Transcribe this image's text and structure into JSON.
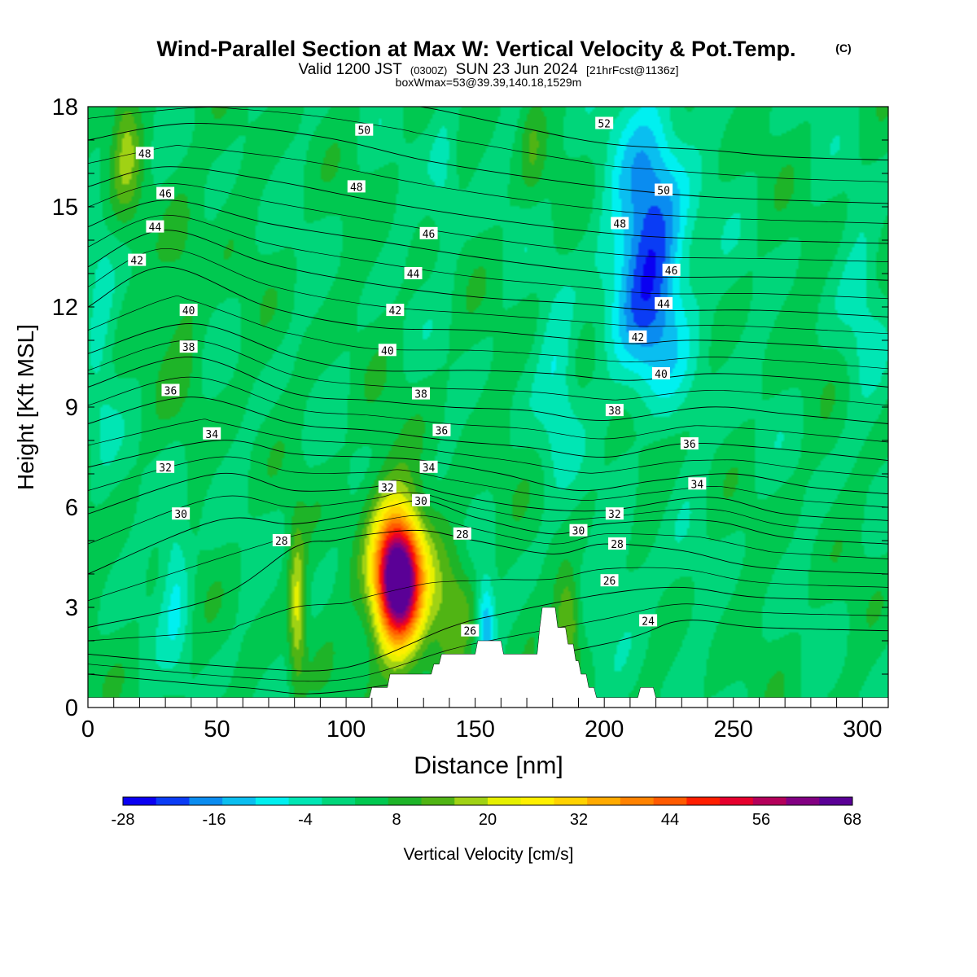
{
  "chart_data": {
    "type": "heatmap",
    "title": "Wind-Parallel Section at Max W: Vertical Velocity & Pot.Temp.",
    "title_mark": "(C)",
    "subtitle_main": "Valid 1200 JST",
    "subtitle_utc": "(0300Z)",
    "subtitle_date": "SUN 23 Jun 2024",
    "subtitle_fcst": "[21hrFcst@1136z]",
    "subtitle2": "boxWmax=53@39.39,140.18,1529m",
    "xlabel": "Distance [nm]",
    "ylabel": "Height [Kft MSL]",
    "xlim": [
      0,
      310
    ],
    "ylim": [
      0,
      18
    ],
    "xticks": [
      "0",
      "50",
      "100",
      "150",
      "200",
      "250",
      "300"
    ],
    "yticks": [
      "0",
      "3",
      "6",
      "9",
      "12",
      "15",
      "18"
    ],
    "colorbar": {
      "label": "Vertical Velocity [cm/s]",
      "ticks": [
        "-28",
        "-16",
        "-4",
        "8",
        "20",
        "32",
        "44",
        "56",
        "68"
      ],
      "colors": [
        "#0a00f2",
        "#0a3cf5",
        "#0a8cf0",
        "#0abef0",
        "#00f0f0",
        "#00e6b4",
        "#00d67a",
        "#00c850",
        "#1eb428",
        "#50b414",
        "#a0d214",
        "#e6f000",
        "#fff000",
        "#ffd200",
        "#ffaa00",
        "#ff8200",
        "#ff5a00",
        "#ff1e00",
        "#e6002d",
        "#b4005a",
        "#820082",
        "#5a0096"
      ]
    },
    "wfield": {
      "background": 3,
      "blobs": [
        {
          "x": 120,
          "y": 3.8,
          "sx": 6,
          "sy": 1.3,
          "a": 64
        },
        {
          "x": 120,
          "y": 4.0,
          "sx": 11,
          "sy": 2.2,
          "a": 14
        },
        {
          "x": 81,
          "y": 3.0,
          "sx": 2.2,
          "sy": 1.6,
          "a": 18
        },
        {
          "x": 186,
          "y": 2.6,
          "sx": 3.5,
          "sy": 1.0,
          "a": 16
        },
        {
          "x": 142,
          "y": 3.0,
          "sx": 6,
          "sy": 1.5,
          "a": 10
        },
        {
          "x": 15,
          "y": 17,
          "sx": 4,
          "sy": 1.5,
          "a": 12
        },
        {
          "x": 37,
          "y": 12.5,
          "sx": 6,
          "sy": 2.5,
          "a": 6
        },
        {
          "x": 218,
          "y": 7.5,
          "sx": 8,
          "sy": 2.0,
          "a": 10
        },
        {
          "x": 172,
          "y": 17,
          "sx": 3,
          "sy": 1.2,
          "a": 6
        },
        {
          "x": 154,
          "y": 2.5,
          "sx": 2.5,
          "sy": 1.0,
          "a": -18
        },
        {
          "x": 34,
          "y": 4.0,
          "sx": 4,
          "sy": 1.8,
          "a": -10
        },
        {
          "x": 218,
          "y": 14,
          "sx": 9,
          "sy": 3.0,
          "a": -20
        },
        {
          "x": 218,
          "y": 11,
          "sx": 15,
          "sy": 4.0,
          "a": -8
        },
        {
          "x": 182,
          "y": 10,
          "sx": 5,
          "sy": 2.0,
          "a": -8
        },
        {
          "x": 138,
          "y": 16,
          "sx": 4,
          "sy": 2.0,
          "a": -6
        },
        {
          "x": 5,
          "y": 11,
          "sx": 4,
          "sy": 3.0,
          "a": -5
        },
        {
          "x": 210,
          "y": 4,
          "sx": 8,
          "sy": 1.5,
          "a": -5
        },
        {
          "x": 300,
          "y": 12,
          "sx": 6,
          "sy": 2.5,
          "a": -5
        }
      ]
    },
    "terrain": [
      [
        0,
        0.3
      ],
      [
        109,
        0.3
      ],
      [
        110,
        0.6
      ],
      [
        116,
        0.6
      ],
      [
        117,
        1.0
      ],
      [
        133,
        1.0
      ],
      [
        134,
        1.3
      ],
      [
        136,
        1.3
      ],
      [
        137,
        1.6
      ],
      [
        150,
        1.6
      ],
      [
        151,
        2.0
      ],
      [
        160,
        2.0
      ],
      [
        161,
        1.6
      ],
      [
        174,
        1.6
      ],
      [
        175,
        2.4
      ],
      [
        176,
        3.0
      ],
      [
        181,
        3.0
      ],
      [
        182,
        2.4
      ],
      [
        185,
        2.4
      ],
      [
        186,
        1.9
      ],
      [
        188,
        1.9
      ],
      [
        189,
        1.4
      ],
      [
        190,
        1.4
      ],
      [
        191,
        1.0
      ],
      [
        193,
        1.0
      ],
      [
        194,
        0.6
      ],
      [
        196,
        0.6
      ],
      [
        197,
        0.3
      ],
      [
        213,
        0.3
      ],
      [
        214,
        0.6
      ],
      [
        219,
        0.6
      ],
      [
        220,
        0.3
      ],
      [
        310,
        0.3
      ]
    ],
    "isentropes": [
      {
        "t": 24,
        "pts": [
          [
            0,
            1.0
          ],
          [
            60,
            0.6
          ],
          [
            100,
            0.5
          ],
          [
            200,
            1.9
          ],
          [
            230,
            2.6
          ],
          [
            260,
            2.4
          ],
          [
            310,
            2.3
          ]
        ]
      },
      {
        "t": 26,
        "pts": [
          [
            0,
            1.6
          ],
          [
            60,
            1.2
          ],
          [
            100,
            1.2
          ],
          [
            140,
            2.4
          ],
          [
            160,
            2.8
          ],
          [
            200,
            3.4
          ],
          [
            230,
            3.6
          ],
          [
            260,
            3.3
          ],
          [
            310,
            3.2
          ]
        ]
      },
      {
        "t": 28,
        "pts": [
          [
            0,
            2.4
          ],
          [
            50,
            3.3
          ],
          [
            80,
            4.8
          ],
          [
            95,
            5.0
          ],
          [
            110,
            5.2
          ],
          [
            130,
            5.3
          ],
          [
            150,
            5.0
          ],
          [
            180,
            4.6
          ],
          [
            200,
            4.9
          ],
          [
            230,
            4.7
          ],
          [
            260,
            4.2
          ],
          [
            310,
            4.0
          ]
        ]
      },
      {
        "t": 30,
        "pts": [
          [
            0,
            4.0
          ],
          [
            50,
            5.6
          ],
          [
            80,
            5.5
          ],
          [
            110,
            5.9
          ],
          [
            130,
            6.2
          ],
          [
            150,
            5.7
          ],
          [
            180,
            5.2
          ],
          [
            200,
            5.5
          ],
          [
            240,
            5.6
          ],
          [
            270,
            5.1
          ],
          [
            310,
            4.9
          ]
        ]
      },
      {
        "t": 32,
        "pts": [
          [
            0,
            5.8
          ],
          [
            50,
            7.0
          ],
          [
            80,
            6.5
          ],
          [
            110,
            6.6
          ],
          [
            120,
            6.8
          ],
          [
            140,
            6.4
          ],
          [
            170,
            6.0
          ],
          [
            200,
            5.9
          ],
          [
            240,
            6.3
          ],
          [
            270,
            5.8
          ],
          [
            310,
            5.6
          ]
        ]
      },
      {
        "t": 34,
        "pts": [
          [
            0,
            7.2
          ],
          [
            50,
            8.0
          ],
          [
            80,
            7.6
          ],
          [
            110,
            7.5
          ],
          [
            130,
            7.4
          ],
          [
            160,
            7.0
          ],
          [
            190,
            6.5
          ],
          [
            220,
            6.8
          ],
          [
            250,
            7.0
          ],
          [
            280,
            6.6
          ],
          [
            310,
            6.4
          ]
        ]
      },
      {
        "t": 36,
        "pts": [
          [
            0,
            8.5
          ],
          [
            40,
            9.3
          ],
          [
            80,
            8.5
          ],
          [
            110,
            8.3
          ],
          [
            140,
            8.0
          ],
          [
            170,
            7.8
          ],
          [
            200,
            7.5
          ],
          [
            230,
            7.9
          ],
          [
            260,
            7.8
          ],
          [
            310,
            7.4
          ]
        ]
      },
      {
        "t": 38,
        "pts": [
          [
            0,
            9.6
          ],
          [
            40,
            10.5
          ],
          [
            80,
            9.4
          ],
          [
            110,
            9.2
          ],
          [
            140,
            9.0
          ],
          [
            170,
            8.9
          ],
          [
            200,
            8.6
          ],
          [
            240,
            9.0
          ],
          [
            270,
            8.8
          ],
          [
            310,
            8.5
          ]
        ]
      },
      {
        "t": 40,
        "pts": [
          [
            0,
            10.6
          ],
          [
            40,
            11.5
          ],
          [
            80,
            10.5
          ],
          [
            110,
            10.1
          ],
          [
            150,
            10.1
          ],
          [
            180,
            10.0
          ],
          [
            210,
            9.8
          ],
          [
            240,
            10.0
          ],
          [
            270,
            9.9
          ],
          [
            310,
            9.6
          ]
        ]
      },
      {
        "t": 42,
        "pts": [
          [
            0,
            12.0
          ],
          [
            30,
            13.2
          ],
          [
            70,
            12.0
          ],
          [
            110,
            11.4
          ],
          [
            150,
            11.3
          ],
          [
            180,
            11.1
          ],
          [
            210,
            10.9
          ],
          [
            240,
            11.0
          ],
          [
            310,
            10.7
          ]
        ]
      },
      {
        "t": 44,
        "pts": [
          [
            0,
            13.2
          ],
          [
            30,
            14.3
          ],
          [
            70,
            13.3
          ],
          [
            110,
            12.7
          ],
          [
            150,
            12.3
          ],
          [
            190,
            12.1
          ],
          [
            220,
            11.9
          ],
          [
            260,
            11.9
          ],
          [
            310,
            11.7
          ]
        ]
      },
      {
        "t": 46,
        "pts": [
          [
            0,
            14.4
          ],
          [
            30,
            15.2
          ],
          [
            70,
            14.5
          ],
          [
            110,
            14.0
          ],
          [
            150,
            13.5
          ],
          [
            190,
            13.1
          ],
          [
            220,
            12.9
          ],
          [
            260,
            12.9
          ],
          [
            310,
            12.8
          ]
        ]
      },
      {
        "t": 48,
        "pts": [
          [
            0,
            15.6
          ],
          [
            30,
            16.2
          ],
          [
            70,
            15.8
          ],
          [
            110,
            15.2
          ],
          [
            150,
            14.7
          ],
          [
            190,
            14.3
          ],
          [
            220,
            14.1
          ],
          [
            260,
            14.0
          ],
          [
            310,
            13.9
          ]
        ]
      },
      {
        "t": 50,
        "pts": [
          [
            0,
            17.0
          ],
          [
            40,
            17.5
          ],
          [
            90,
            17.1
          ],
          [
            130,
            16.4
          ],
          [
            170,
            15.9
          ],
          [
            210,
            15.5
          ],
          [
            240,
            15.3
          ],
          [
            270,
            15.2
          ],
          [
            310,
            15.1
          ]
        ]
      },
      {
        "t": 52,
        "pts": [
          [
            0,
            18.3
          ],
          [
            60,
            18.5
          ],
          [
            120,
            18.1
          ],
          [
            160,
            17.5
          ],
          [
            200,
            16.9
          ],
          [
            240,
            16.7
          ],
          [
            270,
            16.5
          ],
          [
            310,
            16.4
          ]
        ]
      }
    ],
    "contour_labels": [
      {
        "text": "48",
        "x": 22,
        "y": 16.6
      },
      {
        "text": "46",
        "x": 30,
        "y": 15.4
      },
      {
        "text": "44",
        "x": 26,
        "y": 14.4
      },
      {
        "text": "42",
        "x": 19,
        "y": 13.4
      },
      {
        "text": "40",
        "x": 39,
        "y": 11.9
      },
      {
        "text": "38",
        "x": 39,
        "y": 10.8
      },
      {
        "text": "36",
        "x": 32,
        "y": 9.5
      },
      {
        "text": "34",
        "x": 48,
        "y": 8.2
      },
      {
        "text": "32",
        "x": 30,
        "y": 7.2
      },
      {
        "text": "30",
        "x": 36,
        "y": 5.8
      },
      {
        "text": "28",
        "x": 75,
        "y": 5.0
      },
      {
        "text": "50",
        "x": 107,
        "y": 17.3
      },
      {
        "text": "48",
        "x": 104,
        "y": 15.6
      },
      {
        "text": "46",
        "x": 132,
        "y": 14.2
      },
      {
        "text": "44",
        "x": 126,
        "y": 13.0
      },
      {
        "text": "42",
        "x": 119,
        "y": 11.9
      },
      {
        "text": "40",
        "x": 116,
        "y": 10.7
      },
      {
        "text": "38",
        "x": 129,
        "y": 9.4
      },
      {
        "text": "36",
        "x": 137,
        "y": 8.3
      },
      {
        "text": "34",
        "x": 132,
        "y": 7.2
      },
      {
        "text": "32",
        "x": 116,
        "y": 6.6
      },
      {
        "text": "30",
        "x": 129,
        "y": 6.2
      },
      {
        "text": "28",
        "x": 145,
        "y": 5.2
      },
      {
        "text": "26",
        "x": 148,
        "y": 2.3
      },
      {
        "text": "52",
        "x": 200,
        "y": 17.5
      },
      {
        "text": "50",
        "x": 223,
        "y": 15.5
      },
      {
        "text": "48",
        "x": 206,
        "y": 14.5
      },
      {
        "text": "46",
        "x": 226,
        "y": 13.1
      },
      {
        "text": "44",
        "x": 223,
        "y": 12.1
      },
      {
        "text": "42",
        "x": 213,
        "y": 11.1
      },
      {
        "text": "40",
        "x": 222,
        "y": 10.0
      },
      {
        "text": "38",
        "x": 204,
        "y": 8.9
      },
      {
        "text": "36",
        "x": 233,
        "y": 7.9
      },
      {
        "text": "34",
        "x": 236,
        "y": 6.7
      },
      {
        "text": "32",
        "x": 204,
        "y": 5.8
      },
      {
        "text": "30",
        "x": 190,
        "y": 5.3
      },
      {
        "text": "28",
        "x": 205,
        "y": 4.9
      },
      {
        "text": "26",
        "x": 202,
        "y": 3.8
      },
      {
        "text": "24",
        "x": 217,
        "y": 2.6
      }
    ]
  }
}
